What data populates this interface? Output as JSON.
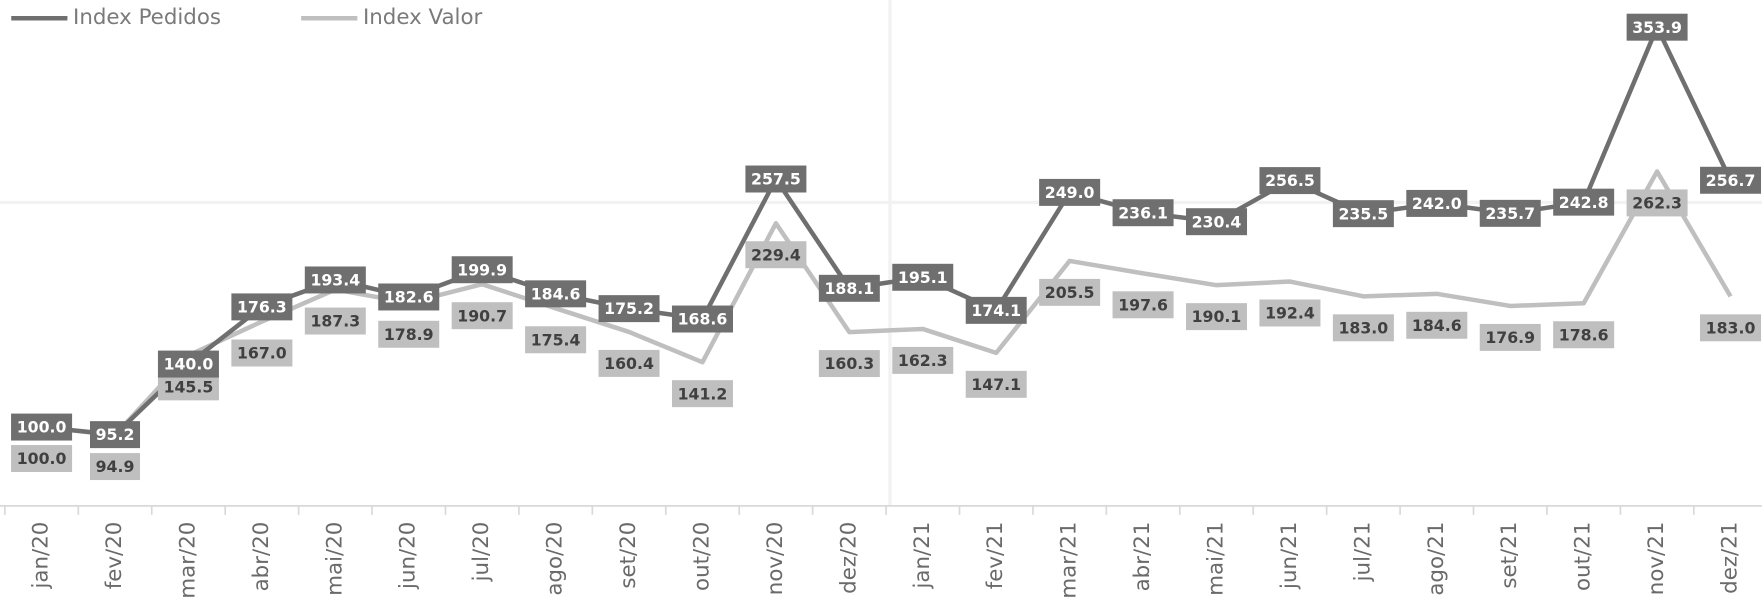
{
  "chart_data": {
    "type": "line",
    "categories": [
      "jan/20",
      "fev/20",
      "mar/20",
      "abr/20",
      "mai/20",
      "jun/20",
      "jul/20",
      "ago/20",
      "set/20",
      "out/20",
      "nov/20",
      "dez/20",
      "jan/21",
      "fev/21",
      "mar/21",
      "abr/21",
      "mai/21",
      "jun/21",
      "jul/21",
      "ago/21",
      "set/21",
      "out/21",
      "nov/21",
      "dez/21"
    ],
    "series": [
      {
        "name": "Index Pedidos",
        "color": "#6f6f6f",
        "values": [
          100.0,
          95.2,
          140.0,
          176.3,
          193.4,
          182.6,
          199.9,
          184.6,
          175.2,
          168.6,
          257.5,
          188.1,
          195.1,
          174.1,
          249.0,
          236.1,
          230.4,
          256.5,
          235.5,
          242.0,
          235.7,
          242.8,
          353.9,
          256.7
        ],
        "value_labels": [
          "100.0",
          "95.2",
          "140.0",
          "176.3",
          "193.4",
          "182.6",
          "199.9",
          "184.6",
          "175.2",
          "168.6",
          "257.5",
          "188.1",
          "195.1",
          "174.1",
          "249.0",
          "236.1",
          "230.4",
          "256.5",
          "235.5",
          "242.0",
          "235.7",
          "242.8",
          "353.9",
          "256.7"
        ]
      },
      {
        "name": "Index Valor",
        "color": "#bfbfbf",
        "values": [
          100.0,
          94.9,
          145.5,
          167.0,
          187.3,
          178.9,
          190.7,
          175.4,
          160.4,
          141.2,
          229.4,
          160.3,
          162.3,
          147.1,
          205.5,
          197.6,
          190.1,
          192.4,
          183.0,
          184.6,
          176.9,
          178.6,
          262.3,
          183.0
        ],
        "value_labels": [
          "100.0",
          "94.9",
          "145.5",
          "167.0",
          "187.3",
          "178.9",
          "190.7",
          "175.4",
          "160.4",
          "141.2",
          "229.4",
          "160.3",
          "162.3",
          "147.1",
          "205.5",
          "197.6",
          "190.1",
          "192.4",
          "183.0",
          "184.6",
          "176.9",
          "178.6",
          "262.3",
          "183.0"
        ]
      }
    ],
    "legend": "top-left"
  }
}
